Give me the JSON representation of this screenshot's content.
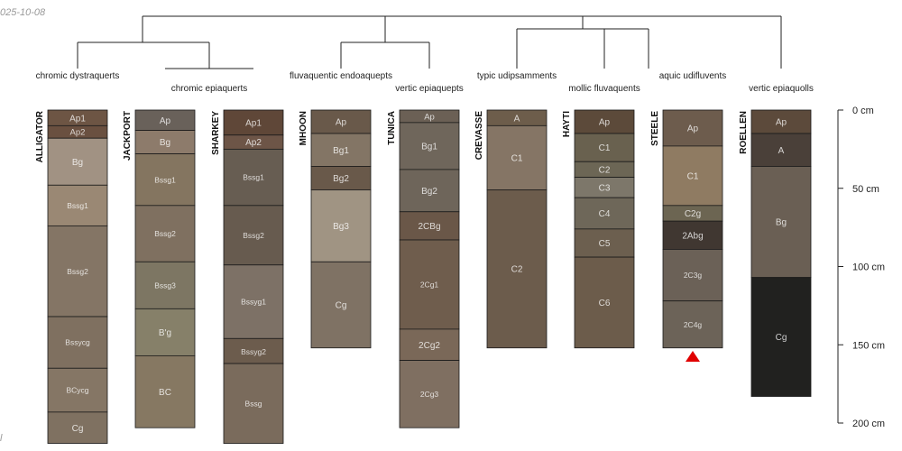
{
  "date_stamp": "025-10-08",
  "corner_mark": "l",
  "depth_axis": {
    "unit": "cm",
    "max": 200,
    "ticks": [
      0,
      50,
      100,
      150,
      200
    ],
    "tick_labels": [
      "0 cm",
      "50 cm",
      "100 cm",
      "150 cm",
      "200 cm"
    ]
  },
  "taxa": [
    "chromic dystraquerts",
    "chromic epiaquerts",
    "fluvaquentic endoaquepts",
    "vertic epiaquepts",
    "typic udipsamments",
    "mollic fluvaquents",
    "aquic udifluvents",
    "vertic epiaquolls"
  ],
  "profiles": [
    {
      "name": "ALLIGATOR",
      "horizons": [
        {
          "name": "Ap1",
          "top": 0,
          "bottom": 10,
          "color": "#6d5544"
        },
        {
          "name": "Ap2",
          "top": 10,
          "bottom": 18,
          "color": "#6a5040"
        },
        {
          "name": "Bg",
          "top": 18,
          "bottom": 48,
          "color": "#a19283"
        },
        {
          "name": "Bssg1",
          "top": 48,
          "bottom": 74,
          "color": "#9a8874"
        },
        {
          "name": "Bssg2",
          "top": 74,
          "bottom": 132,
          "color": "#847565"
        },
        {
          "name": "Bssycg",
          "top": 132,
          "bottom": 165,
          "color": "#7f7060"
        },
        {
          "name": "BCycg",
          "top": 165,
          "bottom": 193,
          "color": "#857665"
        },
        {
          "name": "Cg",
          "top": 193,
          "bottom": 213,
          "color": "#7f7161"
        }
      ]
    },
    {
      "name": "JACKPORT",
      "horizons": [
        {
          "name": "Ap",
          "top": 0,
          "bottom": 13,
          "color": "#69615a"
        },
        {
          "name": "Bg",
          "top": 13,
          "bottom": 28,
          "color": "#8d7b6b"
        },
        {
          "name": "Bssg1",
          "top": 28,
          "bottom": 61,
          "color": "#847560"
        },
        {
          "name": "Bssg2",
          "top": 61,
          "bottom": 97,
          "color": "#7f7060"
        },
        {
          "name": "Bssg3",
          "top": 97,
          "bottom": 127,
          "color": "#7d7663"
        },
        {
          "name": "B'g",
          "top": 127,
          "bottom": 157,
          "color": "#868069"
        },
        {
          "name": "BC",
          "top": 157,
          "bottom": 203,
          "color": "#867862"
        }
      ]
    },
    {
      "name": "SHARKEY",
      "horizons": [
        {
          "name": "Ap1",
          "top": 0,
          "bottom": 16,
          "color": "#5f4738"
        },
        {
          "name": "Ap2",
          "top": 16,
          "bottom": 25,
          "color": "#6d5547"
        },
        {
          "name": "Bssg1",
          "top": 25,
          "bottom": 61,
          "color": "#675d52"
        },
        {
          "name": "Bssg2",
          "top": 61,
          "bottom": 99,
          "color": "#675b4f"
        },
        {
          "name": "Bssyg1",
          "top": 99,
          "bottom": 146,
          "color": "#7d7166"
        },
        {
          "name": "Bssyg2",
          "top": 146,
          "bottom": 162,
          "color": "#6c5c4d"
        },
        {
          "name": "Bssg",
          "top": 162,
          "bottom": 213,
          "color": "#7a6b5c"
        }
      ]
    },
    {
      "name": "MHOON",
      "horizons": [
        {
          "name": "Ap",
          "top": 0,
          "bottom": 15,
          "color": "#69594a"
        },
        {
          "name": "Bg1",
          "top": 15,
          "bottom": 36,
          "color": "#837565"
        },
        {
          "name": "Bg2",
          "top": 36,
          "bottom": 51,
          "color": "#69594a"
        },
        {
          "name": "Bg3",
          "top": 51,
          "bottom": 97,
          "color": "#a09483"
        },
        {
          "name": "Cg",
          "top": 97,
          "bottom": 152,
          "color": "#7f7264"
        }
      ]
    },
    {
      "name": "TUNICA",
      "horizons": [
        {
          "name": "Ap",
          "top": 0,
          "bottom": 8,
          "color": "#6b6055"
        },
        {
          "name": "Bg1",
          "top": 8,
          "bottom": 38,
          "color": "#6f665b"
        },
        {
          "name": "Bg2",
          "top": 38,
          "bottom": 65,
          "color": "#6e655a"
        },
        {
          "name": "2CBg",
          "top": 65,
          "bottom": 83,
          "color": "#6a5748"
        },
        {
          "name": "2Cg1",
          "top": 83,
          "bottom": 140,
          "color": "#6f5d4d"
        },
        {
          "name": "2Cg2",
          "top": 140,
          "bottom": 160,
          "color": "#7a6858"
        },
        {
          "name": "2Cg3",
          "top": 160,
          "bottom": 203,
          "color": "#7f6f61"
        }
      ]
    },
    {
      "name": "CREVASSE",
      "horizons": [
        {
          "name": "A",
          "top": 0,
          "bottom": 10,
          "color": "#6d5d4b"
        },
        {
          "name": "C1",
          "top": 10,
          "bottom": 51,
          "color": "#857565"
        },
        {
          "name": "C2",
          "top": 51,
          "bottom": 152,
          "color": "#6c5c4c"
        }
      ]
    },
    {
      "name": "HAYTI",
      "horizons": [
        {
          "name": "Ap",
          "top": 0,
          "bottom": 15,
          "color": "#5c4a3a"
        },
        {
          "name": "C1",
          "top": 15,
          "bottom": 33,
          "color": "#69614f"
        },
        {
          "name": "C2",
          "top": 33,
          "bottom": 43,
          "color": "#6c6655"
        },
        {
          "name": "C3",
          "top": 43,
          "bottom": 56,
          "color": "#7d776a"
        },
        {
          "name": "C4",
          "top": 56,
          "bottom": 76,
          "color": "#6e6759"
        },
        {
          "name": "C5",
          "top": 76,
          "bottom": 94,
          "color": "#6c5f4f"
        },
        {
          "name": "C6",
          "top": 94,
          "bottom": 152,
          "color": "#6c5c4b"
        }
      ]
    },
    {
      "name": "STEELE",
      "horizons": [
        {
          "name": "Ap",
          "top": 0,
          "bottom": 23,
          "color": "#6d5c4d"
        },
        {
          "name": "C1",
          "top": 23,
          "bottom": 61,
          "color": "#8f7b62"
        },
        {
          "name": "C2g",
          "top": 61,
          "bottom": 71,
          "color": "#6c6552"
        },
        {
          "name": "2Abg",
          "top": 71,
          "bottom": 89,
          "color": "#403731"
        },
        {
          "name": "2C3g",
          "top": 89,
          "bottom": 122,
          "color": "#6b6157"
        },
        {
          "name": "2C4g",
          "top": 122,
          "bottom": 152,
          "color": "#6c6358"
        }
      ]
    },
    {
      "name": "ROELLEN",
      "horizons": [
        {
          "name": "Ap",
          "top": 0,
          "bottom": 15,
          "color": "#5c4a3b"
        },
        {
          "name": "A",
          "top": 15,
          "bottom": 36,
          "color": "#4a4039"
        },
        {
          "name": "Bg",
          "top": 36,
          "bottom": 107,
          "color": "#6a5f54"
        },
        {
          "name": "Cg",
          "top": 107,
          "bottom": 183,
          "color": "#21211f"
        }
      ]
    }
  ]
}
